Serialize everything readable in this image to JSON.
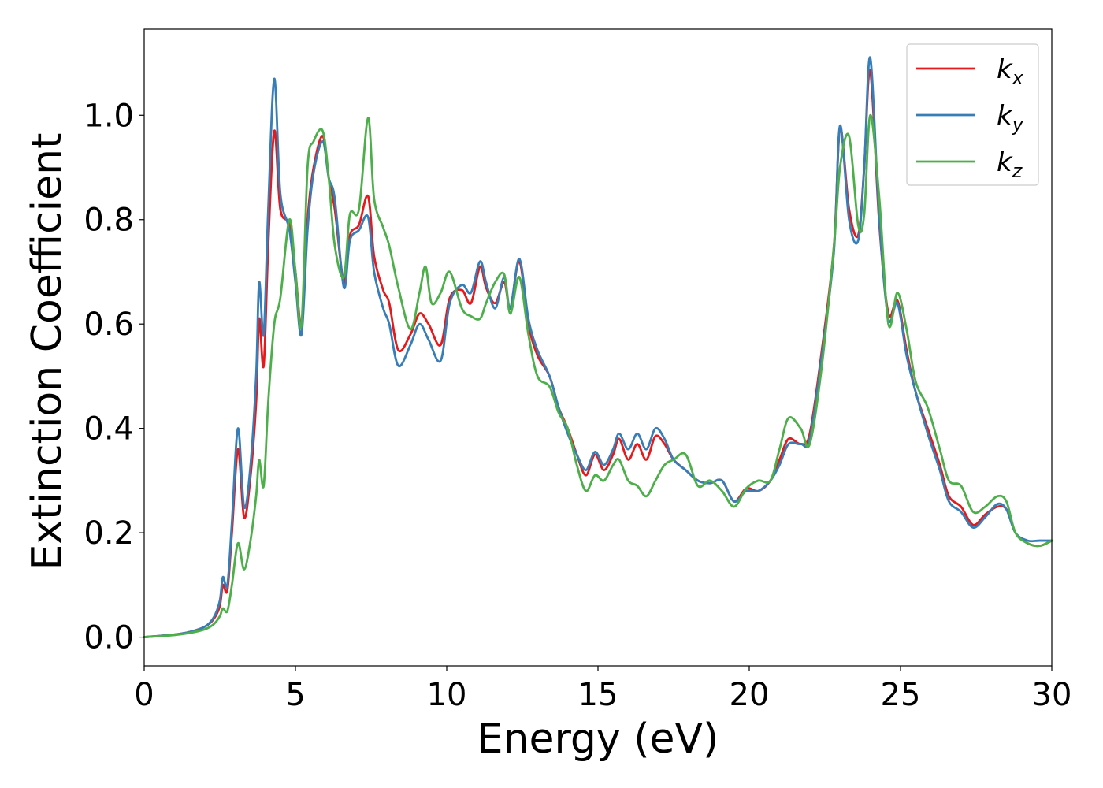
{
  "chart_data": {
    "type": "line",
    "title": "",
    "xlabel": "Energy (eV)",
    "ylabel": "Extinction Coefficient",
    "xlim": [
      0,
      30
    ],
    "ylim": [
      -0.055,
      1.165
    ],
    "xticks": [
      0,
      5,
      10,
      15,
      20,
      25,
      30
    ],
    "xtick_labels": [
      "0",
      "5",
      "10",
      "15",
      "20",
      "25",
      "30"
    ],
    "yticks": [
      0.0,
      0.2,
      0.4,
      0.6,
      0.8,
      1.0
    ],
    "ytick_labels": [
      "0.0",
      "0.2",
      "0.4",
      "0.6",
      "0.8",
      "1.0"
    ],
    "grid": false,
    "legend_position": "top-right",
    "series": [
      {
        "name": "k",
        "subscript": "x",
        "color": "#e41a1c",
        "points": [
          [
            0,
            0
          ],
          [
            1,
            0.005
          ],
          [
            1.5,
            0.01
          ],
          [
            2,
            0.02
          ],
          [
            2.3,
            0.035
          ],
          [
            2.5,
            0.06
          ],
          [
            2.6,
            0.1
          ],
          [
            2.75,
            0.09
          ],
          [
            2.9,
            0.2
          ],
          [
            3.1,
            0.36
          ],
          [
            3.3,
            0.23
          ],
          [
            3.5,
            0.3
          ],
          [
            3.7,
            0.45
          ],
          [
            3.8,
            0.61
          ],
          [
            3.95,
            0.52
          ],
          [
            4.1,
            0.75
          ],
          [
            4.3,
            0.97
          ],
          [
            4.5,
            0.82
          ],
          [
            4.8,
            0.79
          ],
          [
            5.0,
            0.7
          ],
          [
            5.2,
            0.6
          ],
          [
            5.4,
            0.8
          ],
          [
            5.6,
            0.9
          ],
          [
            5.9,
            0.96
          ],
          [
            6.1,
            0.88
          ],
          [
            6.3,
            0.82
          ],
          [
            6.6,
            0.68
          ],
          [
            6.8,
            0.77
          ],
          [
            7.1,
            0.79
          ],
          [
            7.4,
            0.845
          ],
          [
            7.6,
            0.73
          ],
          [
            7.9,
            0.665
          ],
          [
            8.1,
            0.64
          ],
          [
            8.4,
            0.55
          ],
          [
            8.8,
            0.58
          ],
          [
            9.1,
            0.62
          ],
          [
            9.4,
            0.6
          ],
          [
            9.8,
            0.56
          ],
          [
            10.1,
            0.65
          ],
          [
            10.5,
            0.665
          ],
          [
            10.8,
            0.64
          ],
          [
            11.1,
            0.71
          ],
          [
            11.3,
            0.67
          ],
          [
            11.6,
            0.64
          ],
          [
            11.9,
            0.68
          ],
          [
            12.1,
            0.63
          ],
          [
            12.4,
            0.72
          ],
          [
            12.7,
            0.6
          ],
          [
            13.0,
            0.54
          ],
          [
            13.4,
            0.5
          ],
          [
            13.7,
            0.44
          ],
          [
            14.0,
            0.4
          ],
          [
            14.3,
            0.35
          ],
          [
            14.6,
            0.31
          ],
          [
            14.9,
            0.35
          ],
          [
            15.2,
            0.32
          ],
          [
            15.5,
            0.35
          ],
          [
            15.7,
            0.38
          ],
          [
            16.0,
            0.34
          ],
          [
            16.3,
            0.37
          ],
          [
            16.6,
            0.34
          ],
          [
            16.9,
            0.385
          ],
          [
            17.2,
            0.37
          ],
          [
            17.5,
            0.34
          ],
          [
            17.9,
            0.32
          ],
          [
            18.3,
            0.3
          ],
          [
            18.7,
            0.295
          ],
          [
            19.1,
            0.3
          ],
          [
            19.5,
            0.26
          ],
          [
            19.9,
            0.285
          ],
          [
            20.3,
            0.28
          ],
          [
            20.7,
            0.3
          ],
          [
            21.0,
            0.34
          ],
          [
            21.3,
            0.38
          ],
          [
            21.7,
            0.37
          ],
          [
            22.0,
            0.39
          ],
          [
            22.4,
            0.55
          ],
          [
            22.8,
            0.75
          ],
          [
            23.0,
            0.975
          ],
          [
            23.3,
            0.82
          ],
          [
            23.6,
            0.77
          ],
          [
            23.8,
            0.9
          ],
          [
            24.0,
            1.085
          ],
          [
            24.3,
            0.79
          ],
          [
            24.6,
            0.62
          ],
          [
            24.9,
            0.645
          ],
          [
            25.2,
            0.55
          ],
          [
            25.5,
            0.47
          ],
          [
            25.9,
            0.4
          ],
          [
            26.3,
            0.33
          ],
          [
            26.6,
            0.27
          ],
          [
            27.0,
            0.25
          ],
          [
            27.4,
            0.215
          ],
          [
            27.8,
            0.235
          ],
          [
            28.2,
            0.25
          ],
          [
            28.5,
            0.245
          ],
          [
            28.8,
            0.2
          ],
          [
            29.2,
            0.18
          ],
          [
            29.6,
            0.175
          ],
          [
            30,
            0.185
          ]
        ]
      },
      {
        "name": "k",
        "subscript": "y",
        "color": "#377eb8",
        "points": [
          [
            0,
            0
          ],
          [
            1,
            0.005
          ],
          [
            1.5,
            0.01
          ],
          [
            2,
            0.02
          ],
          [
            2.3,
            0.038
          ],
          [
            2.5,
            0.07
          ],
          [
            2.6,
            0.115
          ],
          [
            2.75,
            0.1
          ],
          [
            2.9,
            0.22
          ],
          [
            3.1,
            0.4
          ],
          [
            3.3,
            0.25
          ],
          [
            3.5,
            0.32
          ],
          [
            3.7,
            0.5
          ],
          [
            3.8,
            0.68
          ],
          [
            3.95,
            0.58
          ],
          [
            4.1,
            0.82
          ],
          [
            4.3,
            1.07
          ],
          [
            4.5,
            0.85
          ],
          [
            4.8,
            0.78
          ],
          [
            5.0,
            0.68
          ],
          [
            5.2,
            0.58
          ],
          [
            5.4,
            0.78
          ],
          [
            5.6,
            0.89
          ],
          [
            5.9,
            0.95
          ],
          [
            6.1,
            0.88
          ],
          [
            6.3,
            0.84
          ],
          [
            6.6,
            0.67
          ],
          [
            6.8,
            0.76
          ],
          [
            7.1,
            0.78
          ],
          [
            7.4,
            0.805
          ],
          [
            7.6,
            0.7
          ],
          [
            7.9,
            0.63
          ],
          [
            8.1,
            0.6
          ],
          [
            8.4,
            0.52
          ],
          [
            8.8,
            0.56
          ],
          [
            9.1,
            0.6
          ],
          [
            9.4,
            0.57
          ],
          [
            9.8,
            0.53
          ],
          [
            10.1,
            0.64
          ],
          [
            10.5,
            0.675
          ],
          [
            10.8,
            0.66
          ],
          [
            11.1,
            0.72
          ],
          [
            11.3,
            0.68
          ],
          [
            11.6,
            0.63
          ],
          [
            11.9,
            0.69
          ],
          [
            12.1,
            0.63
          ],
          [
            12.4,
            0.725
          ],
          [
            12.7,
            0.61
          ],
          [
            13.0,
            0.55
          ],
          [
            13.4,
            0.5
          ],
          [
            13.7,
            0.44
          ],
          [
            14.0,
            0.39
          ],
          [
            14.3,
            0.35
          ],
          [
            14.6,
            0.32
          ],
          [
            14.9,
            0.355
          ],
          [
            15.2,
            0.33
          ],
          [
            15.5,
            0.36
          ],
          [
            15.7,
            0.39
          ],
          [
            16.0,
            0.36
          ],
          [
            16.3,
            0.39
          ],
          [
            16.6,
            0.36
          ],
          [
            16.9,
            0.4
          ],
          [
            17.2,
            0.38
          ],
          [
            17.5,
            0.34
          ],
          [
            17.9,
            0.32
          ],
          [
            18.3,
            0.3
          ],
          [
            18.7,
            0.295
          ],
          [
            19.1,
            0.3
          ],
          [
            19.5,
            0.26
          ],
          [
            19.9,
            0.28
          ],
          [
            20.3,
            0.28
          ],
          [
            20.7,
            0.3
          ],
          [
            21.0,
            0.33
          ],
          [
            21.3,
            0.37
          ],
          [
            21.7,
            0.37
          ],
          [
            22.0,
            0.38
          ],
          [
            22.4,
            0.54
          ],
          [
            22.8,
            0.74
          ],
          [
            23.0,
            0.98
          ],
          [
            23.3,
            0.8
          ],
          [
            23.6,
            0.76
          ],
          [
            23.8,
            0.9
          ],
          [
            24.0,
            1.11
          ],
          [
            24.3,
            0.8
          ],
          [
            24.6,
            0.61
          ],
          [
            24.9,
            0.64
          ],
          [
            25.2,
            0.54
          ],
          [
            25.5,
            0.47
          ],
          [
            25.9,
            0.39
          ],
          [
            26.3,
            0.32
          ],
          [
            26.6,
            0.26
          ],
          [
            27.0,
            0.24
          ],
          [
            27.4,
            0.21
          ],
          [
            27.8,
            0.23
          ],
          [
            28.2,
            0.255
          ],
          [
            28.5,
            0.245
          ],
          [
            28.8,
            0.2
          ],
          [
            29.2,
            0.185
          ],
          [
            29.6,
            0.185
          ],
          [
            30,
            0.185
          ]
        ]
      },
      {
        "name": "k",
        "subscript": "z",
        "color": "#4daf4a",
        "points": [
          [
            0,
            0
          ],
          [
            1,
            0.004
          ],
          [
            1.5,
            0.008
          ],
          [
            2,
            0.015
          ],
          [
            2.3,
            0.025
          ],
          [
            2.5,
            0.04
          ],
          [
            2.6,
            0.055
          ],
          [
            2.75,
            0.05
          ],
          [
            2.9,
            0.1
          ],
          [
            3.1,
            0.18
          ],
          [
            3.3,
            0.13
          ],
          [
            3.5,
            0.18
          ],
          [
            3.7,
            0.27
          ],
          [
            3.8,
            0.34
          ],
          [
            3.95,
            0.29
          ],
          [
            4.1,
            0.45
          ],
          [
            4.3,
            0.6
          ],
          [
            4.5,
            0.65
          ],
          [
            4.8,
            0.8
          ],
          [
            5.0,
            0.7
          ],
          [
            5.2,
            0.6
          ],
          [
            5.4,
            0.9
          ],
          [
            5.6,
            0.95
          ],
          [
            5.9,
            0.97
          ],
          [
            6.1,
            0.88
          ],
          [
            6.3,
            0.75
          ],
          [
            6.6,
            0.69
          ],
          [
            6.8,
            0.81
          ],
          [
            7.1,
            0.82
          ],
          [
            7.4,
            0.995
          ],
          [
            7.6,
            0.84
          ],
          [
            7.9,
            0.785
          ],
          [
            8.1,
            0.75
          ],
          [
            8.4,
            0.67
          ],
          [
            8.8,
            0.59
          ],
          [
            9.1,
            0.66
          ],
          [
            9.3,
            0.71
          ],
          [
            9.5,
            0.64
          ],
          [
            9.8,
            0.66
          ],
          [
            10.1,
            0.7
          ],
          [
            10.5,
            0.63
          ],
          [
            10.8,
            0.615
          ],
          [
            11.1,
            0.61
          ],
          [
            11.3,
            0.64
          ],
          [
            11.6,
            0.68
          ],
          [
            11.9,
            0.695
          ],
          [
            12.1,
            0.62
          ],
          [
            12.4,
            0.69
          ],
          [
            12.7,
            0.58
          ],
          [
            13.0,
            0.5
          ],
          [
            13.4,
            0.48
          ],
          [
            13.7,
            0.43
          ],
          [
            14.0,
            0.4
          ],
          [
            14.3,
            0.33
          ],
          [
            14.6,
            0.28
          ],
          [
            14.9,
            0.31
          ],
          [
            15.2,
            0.3
          ],
          [
            15.5,
            0.33
          ],
          [
            15.7,
            0.34
          ],
          [
            16.0,
            0.3
          ],
          [
            16.3,
            0.29
          ],
          [
            16.6,
            0.27
          ],
          [
            16.9,
            0.3
          ],
          [
            17.2,
            0.33
          ],
          [
            17.5,
            0.34
          ],
          [
            17.9,
            0.35
          ],
          [
            18.3,
            0.29
          ],
          [
            18.7,
            0.3
          ],
          [
            19.1,
            0.28
          ],
          [
            19.5,
            0.25
          ],
          [
            19.9,
            0.285
          ],
          [
            20.3,
            0.3
          ],
          [
            20.7,
            0.3
          ],
          [
            21.0,
            0.36
          ],
          [
            21.3,
            0.42
          ],
          [
            21.7,
            0.4
          ],
          [
            22.0,
            0.37
          ],
          [
            22.4,
            0.52
          ],
          [
            22.8,
            0.75
          ],
          [
            23.0,
            0.9
          ],
          [
            23.3,
            0.96
          ],
          [
            23.6,
            0.79
          ],
          [
            23.8,
            0.81
          ],
          [
            24.0,
            1.0
          ],
          [
            24.3,
            0.84
          ],
          [
            24.6,
            0.6
          ],
          [
            24.9,
            0.66
          ],
          [
            25.2,
            0.59
          ],
          [
            25.5,
            0.49
          ],
          [
            25.9,
            0.44
          ],
          [
            26.3,
            0.36
          ],
          [
            26.6,
            0.3
          ],
          [
            27.0,
            0.29
          ],
          [
            27.4,
            0.24
          ],
          [
            27.8,
            0.25
          ],
          [
            28.2,
            0.27
          ],
          [
            28.5,
            0.26
          ],
          [
            28.8,
            0.2
          ],
          [
            29.2,
            0.18
          ],
          [
            29.6,
            0.175
          ],
          [
            30,
            0.185
          ]
        ]
      }
    ]
  }
}
